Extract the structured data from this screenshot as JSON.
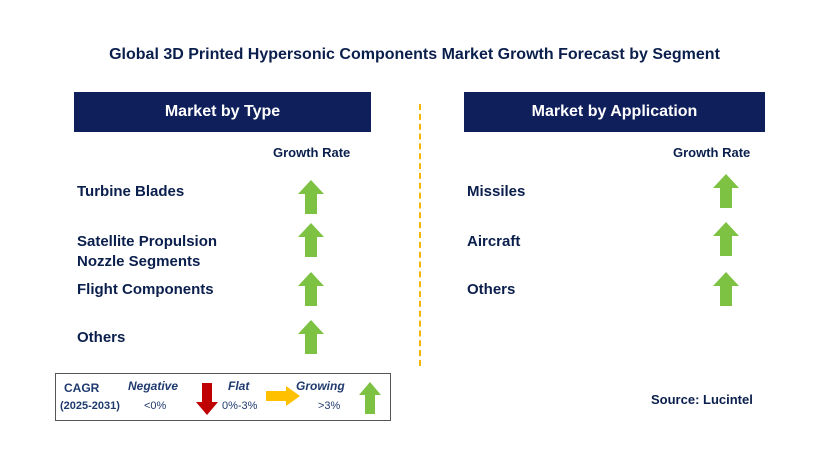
{
  "title": "Global 3D Printed Hypersonic Components Market Growth Forecast by Segment",
  "colors": {
    "header_bg": "#0e1f5b",
    "growing": "#7dc243",
    "negative": "#c00000",
    "flat": "#ffc000",
    "divider": "#f5b400"
  },
  "left_panel": {
    "header": "Market by Type",
    "column_header": "Growth Rate",
    "items": [
      {
        "label_lines": [
          "Turbine Blades"
        ],
        "trend": "growing"
      },
      {
        "label_lines": [
          "Satellite Propulsion",
          "Nozzle Segments"
        ],
        "trend": "growing"
      },
      {
        "label_lines": [
          "Flight Components"
        ],
        "trend": "growing"
      },
      {
        "label_lines": [
          "Others"
        ],
        "trend": "growing"
      }
    ]
  },
  "right_panel": {
    "header": "Market by Application",
    "column_header": "Growth Rate",
    "items": [
      {
        "label_lines": [
          "Missiles"
        ],
        "trend": "growing"
      },
      {
        "label_lines": [
          "Aircraft"
        ],
        "trend": "growing"
      },
      {
        "label_lines": [
          "Others"
        ],
        "trend": "growing"
      }
    ]
  },
  "legend": {
    "title": "CAGR",
    "period": "(2025-2031)",
    "negative_label": "Negative",
    "negative_range": "<0%",
    "flat_label": "Flat",
    "flat_range": "0%-3%",
    "growing_label": "Growing",
    "growing_range": ">3%"
  },
  "source": "Source: Lucintel"
}
